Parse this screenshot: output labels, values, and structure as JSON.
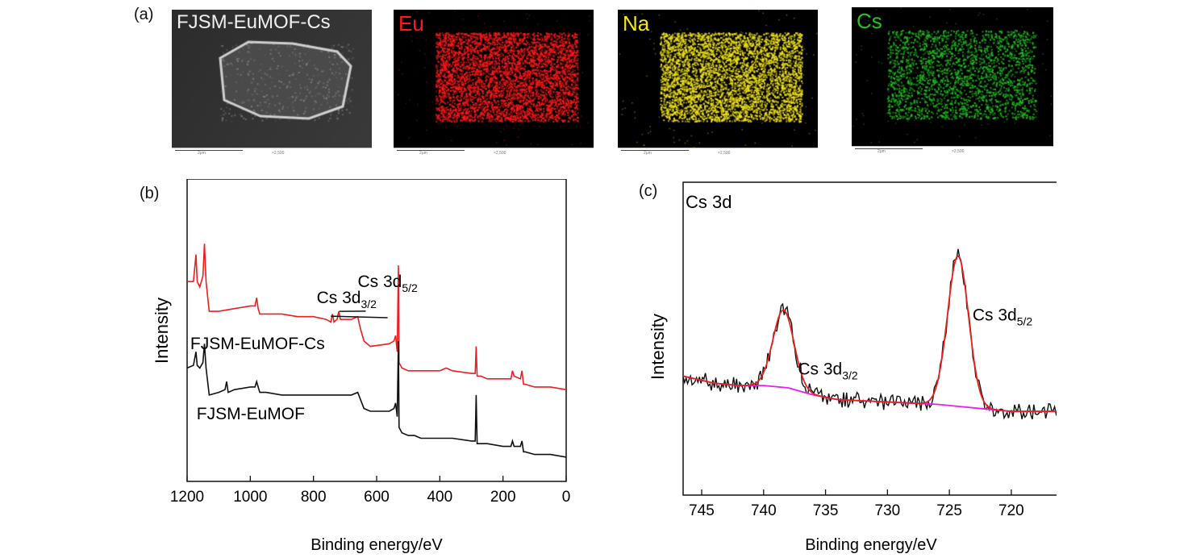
{
  "panels": {
    "a": {
      "letter": "(a)",
      "maps": [
        {
          "label": "FJSM-EuMOF-Cs",
          "color": "#e6e6e6",
          "kind": "sem",
          "scale_left": "2μm",
          "scale_right": "×2,500"
        },
        {
          "label": "Eu",
          "color": "#ff1a1a",
          "kind": "map",
          "scale_left": "2μm",
          "scale_right": "×2,500"
        },
        {
          "label": "Na",
          "color": "#f5e61a",
          "kind": "map",
          "scale_left": "2μm",
          "scale_right": "×2,500"
        },
        {
          "label": "Cs",
          "color": "#22c322",
          "kind": "map",
          "scale_left": "2μm",
          "scale_right": "×2,500"
        }
      ]
    },
    "b": {
      "letter": "(b)"
    },
    "c": {
      "letter": "(c)"
    }
  },
  "chart_data": [
    {
      "panel": "b",
      "type": "line",
      "xlabel": "Binding energy/eV",
      "ylabel": "Intensity",
      "xlim": [
        1200,
        0
      ],
      "ylim": [
        0,
        100
      ],
      "x_ticks": [
        1200,
        1000,
        800,
        600,
        400,
        200,
        0
      ],
      "series": [
        {
          "name": "FJSM-EuMOF-Cs",
          "color": "#e8201e",
          "points": [
            [
              1200,
              68
            ],
            [
              1180,
              68
            ],
            [
              1172,
              78
            ],
            [
              1168,
              68
            ],
            [
              1160,
              66
            ],
            [
              1150,
              70
            ],
            [
              1145,
              82
            ],
            [
              1140,
              68
            ],
            [
              1130,
              57
            ],
            [
              1100,
              57
            ],
            [
              1050,
              58
            ],
            [
              1000,
              59
            ],
            [
              985,
              59
            ],
            [
              980,
              62
            ],
            [
              975,
              58
            ],
            [
              970,
              56
            ],
            [
              950,
              56
            ],
            [
              900,
              56
            ],
            [
              850,
              55
            ],
            [
              800,
              55
            ],
            [
              760,
              54
            ],
            [
              745,
              53
            ],
            [
              740,
              56
            ],
            [
              735,
              53
            ],
            [
              725,
              54
            ],
            [
              720,
              57
            ],
            [
              715,
              54
            ],
            [
              700,
              54
            ],
            [
              680,
              54
            ],
            [
              660,
              55
            ],
            [
              650,
              50
            ],
            [
              640,
              46
            ],
            [
              620,
              44
            ],
            [
              560,
              45
            ],
            [
              545,
              46
            ],
            [
              540,
              48
            ],
            [
              535,
              42
            ],
            [
              531,
              74
            ],
            [
              529,
              38
            ],
            [
              520,
              36
            ],
            [
              500,
              35
            ],
            [
              480,
              35
            ],
            [
              460,
              35
            ],
            [
              440,
              35
            ],
            [
              400,
              35
            ],
            [
              380,
              36
            ],
            [
              360,
              35
            ],
            [
              300,
              34
            ],
            [
              288,
              34
            ],
            [
              285,
              44
            ],
            [
              282,
              33
            ],
            [
              270,
              33
            ],
            [
              250,
              32
            ],
            [
              200,
              32
            ],
            [
              175,
              32
            ],
            [
              170,
              35
            ],
            [
              165,
              33
            ],
            [
              145,
              32
            ],
            [
              140,
              35
            ],
            [
              135,
              30
            ],
            [
              130,
              30
            ],
            [
              100,
              29
            ],
            [
              50,
              29
            ],
            [
              0,
              28
            ]
          ]
        },
        {
          "name": "FJSM-EuMOF",
          "color": "#111111",
          "points": [
            [
              1200,
              36
            ],
            [
              1180,
              37
            ],
            [
              1172,
              42
            ],
            [
              1168,
              37
            ],
            [
              1160,
              36
            ],
            [
              1150,
              38
            ],
            [
              1145,
              45
            ],
            [
              1140,
              36
            ],
            [
              1130,
              26
            ],
            [
              1100,
              27
            ],
            [
              1080,
              28
            ],
            [
              1075,
              31
            ],
            [
              1070,
              27
            ],
            [
              1050,
              28
            ],
            [
              1000,
              29
            ],
            [
              985,
              29
            ],
            [
              980,
              31
            ],
            [
              975,
              29
            ],
            [
              970,
              27
            ],
            [
              950,
              27
            ],
            [
              900,
              26
            ],
            [
              850,
              26
            ],
            [
              800,
              26
            ],
            [
              750,
              26
            ],
            [
              700,
              26
            ],
            [
              680,
              26
            ],
            [
              660,
              27
            ],
            [
              650,
              24
            ],
            [
              640,
              21
            ],
            [
              620,
              20
            ],
            [
              560,
              20
            ],
            [
              545,
              21
            ],
            [
              540,
              23
            ],
            [
              535,
              18
            ],
            [
              531,
              46
            ],
            [
              529,
              14
            ],
            [
              520,
              12
            ],
            [
              500,
              11
            ],
            [
              480,
              11
            ],
            [
              460,
              10
            ],
            [
              440,
              10
            ],
            [
              400,
              10
            ],
            [
              360,
              10
            ],
            [
              300,
              9
            ],
            [
              288,
              9
            ],
            [
              285,
              26
            ],
            [
              282,
              8
            ],
            [
              270,
              8
            ],
            [
              250,
              8
            ],
            [
              200,
              7
            ],
            [
              175,
              7
            ],
            [
              170,
              9
            ],
            [
              165,
              7
            ],
            [
              145,
              7
            ],
            [
              140,
              9
            ],
            [
              135,
              5
            ],
            [
              130,
              5
            ],
            [
              100,
              4
            ],
            [
              50,
              4
            ],
            [
              0,
              3
            ]
          ]
        }
      ],
      "annotations": [
        {
          "text": "Cs 3d",
          "sub": "3/2",
          "at": [
            790,
            60
          ]
        },
        {
          "text": "Cs 3d",
          "sub": "5/2",
          "at": [
            660,
            66
          ]
        },
        {
          "text": "FJSM-EuMOF-Cs",
          "at": [
            1190,
            43
          ]
        },
        {
          "text": "FJSM-EuMOF",
          "at": [
            1170,
            17
          ]
        }
      ]
    },
    {
      "panel": "c",
      "type": "line",
      "xlabel": "Binding energy/eV",
      "ylabel": "Intensity",
      "title": "Cs 3d",
      "xlim": [
        746.5,
        715.5
      ],
      "ylim": [
        0,
        100
      ],
      "x_ticks": [
        745,
        740,
        735,
        730,
        725,
        720
      ],
      "peaks": [
        {
          "label": "Cs 3d",
          "sub": "3/2",
          "center": 738.4,
          "height": 58,
          "fwhm": 2.0
        },
        {
          "label": "Cs 3d",
          "sub": "5/2",
          "center": 724.3,
          "height": 81,
          "fwhm": 2.0
        }
      ],
      "background": {
        "name": "baseline",
        "color": "#e81ee8",
        "points": [
          [
            746.5,
            30
          ],
          [
            744,
            27
          ],
          [
            742,
            26
          ],
          [
            740,
            26
          ],
          [
            738,
            25
          ],
          [
            736,
            22
          ],
          [
            734,
            20
          ],
          [
            730,
            19
          ],
          [
            726,
            18
          ],
          [
            724,
            17
          ],
          [
            722,
            16
          ],
          [
            720,
            15
          ],
          [
            718,
            15
          ],
          [
            716,
            15
          ]
        ]
      },
      "fit": {
        "name": "fit",
        "color": "#e8201e"
      },
      "raw": {
        "name": "raw",
        "color": "#111111",
        "noise": 3.5
      }
    }
  ]
}
